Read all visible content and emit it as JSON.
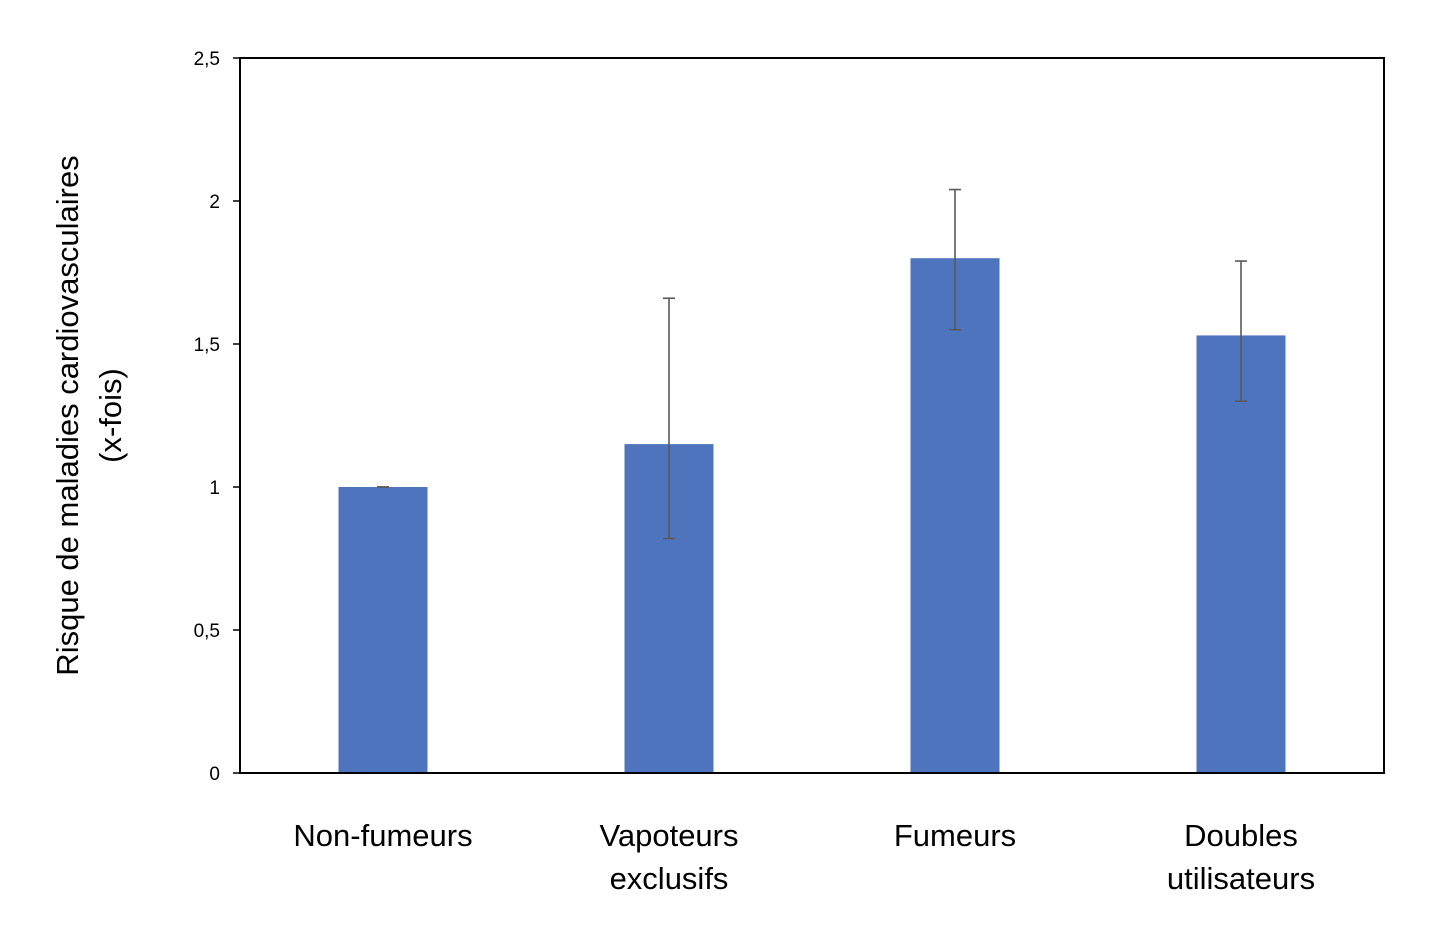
{
  "chart_data": {
    "type": "bar",
    "categories": [
      [
        "Non-fumeurs"
      ],
      [
        "Vapoteurs",
        "exclusifs"
      ],
      [
        "Fumeurs"
      ],
      [
        "Doubles",
        "utilisateurs"
      ]
    ],
    "values": [
      1.0,
      1.15,
      1.8,
      1.53
    ],
    "error_low": [
      1.0,
      0.82,
      1.55,
      1.3
    ],
    "error_high": [
      1.0,
      1.66,
      2.04,
      1.79
    ],
    "ylabel": [
      "Risque de maladies cardiovasculaires",
      "(x-fois)"
    ],
    "ylim": [
      0,
      2.5
    ],
    "yticks": [
      {
        "value": 0,
        "label": "0"
      },
      {
        "value": 0.5,
        "label": "0,5"
      },
      {
        "value": 1,
        "label": "1"
      },
      {
        "value": 1.5,
        "label": "1,5"
      },
      {
        "value": 2,
        "label": "2"
      },
      {
        "value": 2.5,
        "label": "2,5"
      }
    ],
    "grid": false,
    "bar_color": "#4e74bd",
    "error_bar_color": "#595959"
  }
}
